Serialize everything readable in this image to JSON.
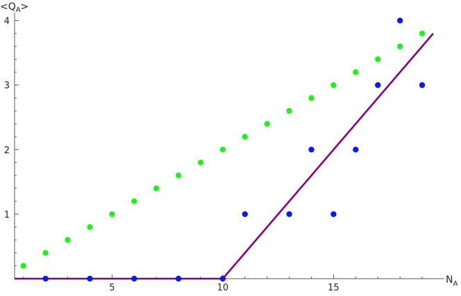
{
  "chart_data": {
    "type": "scatter",
    "xlabel": "N",
    "xlabel_sub": "A",
    "ylabel_prefix": "<Q",
    "ylabel_sub": "A",
    "ylabel_suffix": ">",
    "xlim": [
      0.6,
      19.5
    ],
    "ylim": [
      0,
      4.05
    ],
    "x_ticks": [
      5,
      10,
      15
    ],
    "y_ticks": [
      1,
      2,
      3,
      4
    ],
    "x_minor_ticks": [
      1,
      2,
      3,
      4,
      6,
      7,
      8,
      9,
      11,
      12,
      13,
      14,
      16,
      17,
      18,
      19
    ],
    "grid": false,
    "legend": "none",
    "series": [
      {
        "type": "scatter",
        "color": "#22ee22",
        "points": [
          [
            1,
            0.2
          ],
          [
            2,
            0.4
          ],
          [
            3,
            0.6
          ],
          [
            4,
            0.8
          ],
          [
            5,
            1.0
          ],
          [
            6,
            1.2
          ],
          [
            7,
            1.4
          ],
          [
            8,
            1.6
          ],
          [
            9,
            1.8
          ],
          [
            10,
            2.0
          ],
          [
            11,
            2.2
          ],
          [
            12,
            2.4
          ],
          [
            13,
            2.6
          ],
          [
            14,
            2.8
          ],
          [
            15,
            3.0
          ],
          [
            16,
            3.2
          ],
          [
            17,
            3.4
          ],
          [
            18,
            3.6
          ],
          [
            19,
            3.8
          ]
        ]
      },
      {
        "type": "scatter",
        "color": "#0a1aee",
        "points": [
          [
            2,
            0
          ],
          [
            4,
            0
          ],
          [
            6,
            0
          ],
          [
            8,
            0
          ],
          [
            10,
            0
          ],
          [
            11,
            1
          ],
          [
            13,
            1
          ],
          [
            14,
            2
          ],
          [
            15,
            1
          ],
          [
            16,
            2
          ],
          [
            17,
            3
          ],
          [
            18,
            4
          ],
          [
            19,
            3
          ]
        ]
      },
      {
        "type": "line",
        "color": "#800080",
        "points": [
          [
            0.6,
            0
          ],
          [
            10,
            0
          ],
          [
            19.5,
            3.8
          ]
        ]
      }
    ]
  }
}
